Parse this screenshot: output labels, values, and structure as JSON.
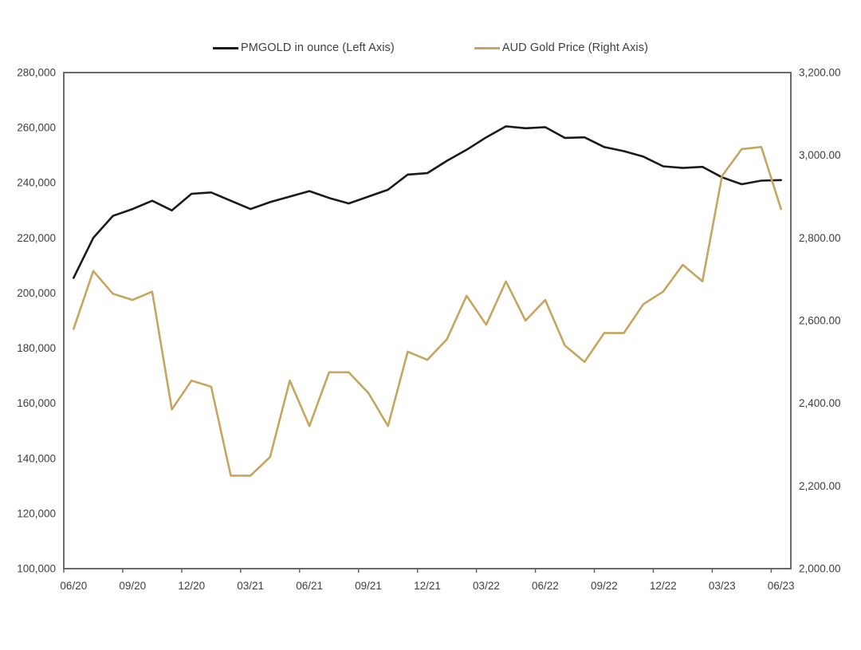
{
  "page": {
    "background": "#ffffff"
  },
  "legend": [
    {
      "label": "PMGOLD in ounce (Left Axis)",
      "color": "#1a1a1a"
    },
    {
      "label": "AUD Gold Price (Right Axis)",
      "color": "#c6a65e"
    }
  ],
  "chart_data": {
    "type": "line",
    "title": "",
    "x": [
      "06/20",
      "07/20",
      "08/20",
      "09/20",
      "10/20",
      "11/20",
      "12/20",
      "01/21",
      "02/21",
      "03/21",
      "04/21",
      "05/21",
      "06/21",
      "07/21",
      "08/21",
      "09/21",
      "10/21",
      "11/21",
      "12/21",
      "01/22",
      "02/22",
      "03/22",
      "04/22",
      "05/22",
      "06/22",
      "07/22",
      "08/22",
      "09/22",
      "10/22",
      "11/22",
      "12/22",
      "01/23",
      "02/23",
      "03/23",
      "04/23",
      "05/23",
      "06/23"
    ],
    "x_tick_labels": [
      "06/20",
      "09/20",
      "12/20",
      "03/21",
      "06/21",
      "09/21",
      "12/21",
      "03/22",
      "06/22",
      "09/22",
      "12/22",
      "03/23",
      "06/23"
    ],
    "series": [
      {
        "name": "PMGOLD in ounce (Left Axis)",
        "axis": "left",
        "color": "#1a1a1a",
        "values": [
          205500,
          220000,
          228000,
          230500,
          233500,
          230000,
          236000,
          236500,
          233500,
          230500,
          233000,
          235000,
          237000,
          234500,
          232500,
          235000,
          237500,
          243000,
          243500,
          248000,
          252000,
          256500,
          260500,
          259800,
          260200,
          256300,
          256500,
          253000,
          251500,
          249500,
          246000,
          245400,
          245800,
          242000,
          239500,
          240800,
          241000
        ]
      },
      {
        "name": "AUD Gold Price (Right Axis)",
        "axis": "right",
        "color": "#c6a65e",
        "values": [
          2580,
          2720,
          2665,
          2650,
          2670,
          2385,
          2455,
          2440,
          2225,
          2225,
          2270,
          2455,
          2345,
          2475,
          2475,
          2425,
          2345,
          2525,
          2505,
          2555,
          2660,
          2590,
          2695,
          2600,
          2650,
          2540,
          2500,
          2570,
          2570,
          2640,
          2670,
          2735,
          2695,
          2950,
          3015,
          3020,
          2870
        ]
      }
    ],
    "left_axis": {
      "min": 100000,
      "max": 280000,
      "step": 20000,
      "tick_labels": [
        "280,000",
        "260,000",
        "240,000",
        "220,000",
        "200,000",
        "180,000",
        "160,000",
        "140,000",
        "120,000",
        "100,000"
      ]
    },
    "right_axis": {
      "min": 2000,
      "max": 3200,
      "step": 200,
      "tick_labels": [
        "3,200.00",
        "3,000.00",
        "2,800.00",
        "2,600.00",
        "2,400.00",
        "2,200.00",
        "2,000.00"
      ]
    },
    "grid": false,
    "legend_position": "top",
    "axis_color": "#595959",
    "text_color": "#3f3f3f"
  }
}
